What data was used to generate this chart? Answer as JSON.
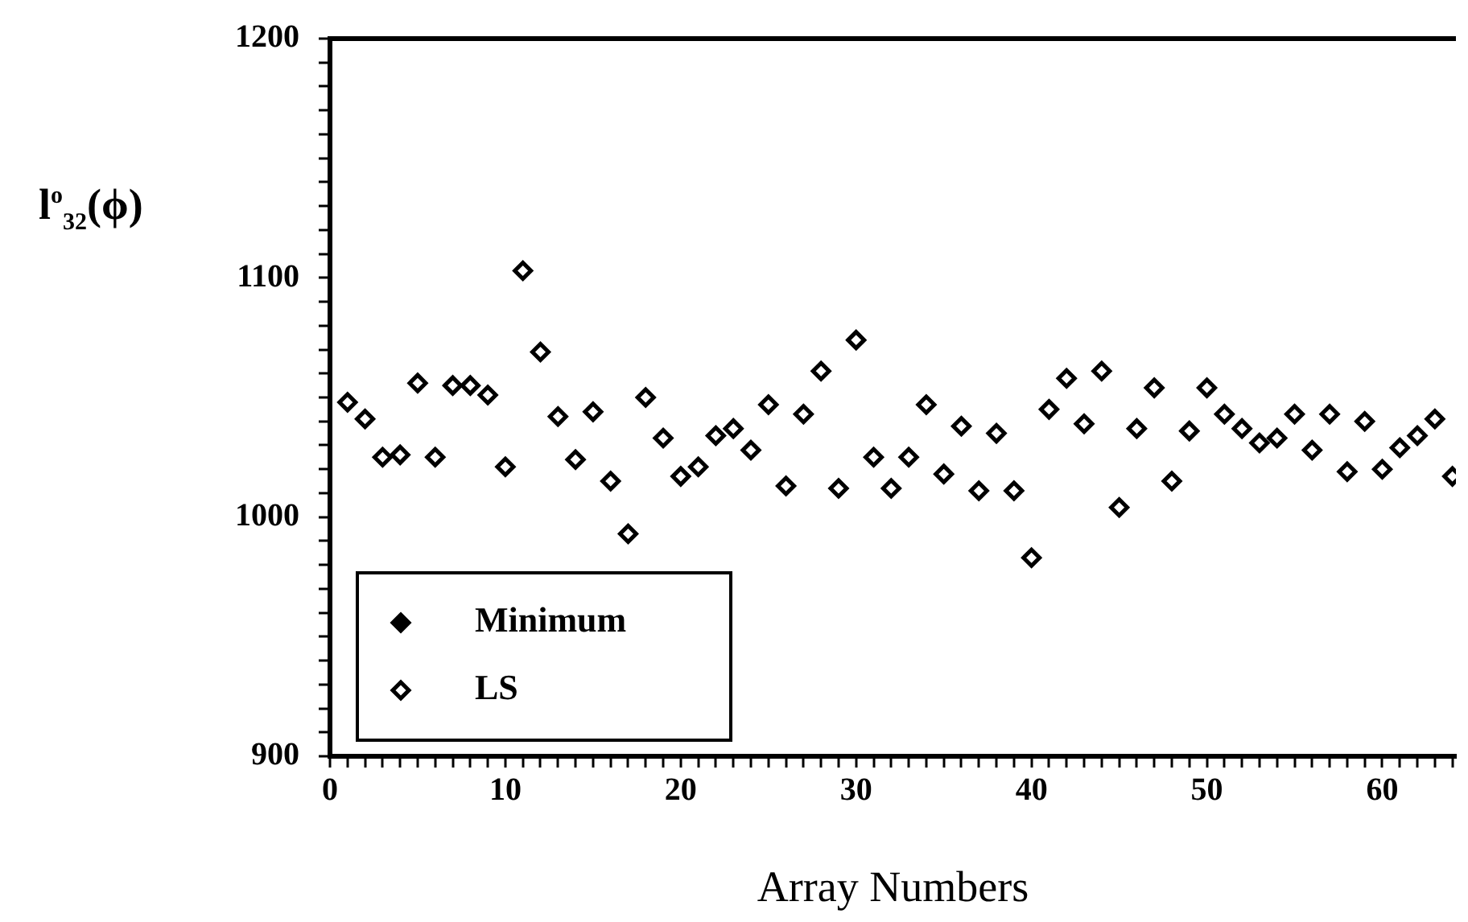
{
  "chart_data": {
    "type": "scatter",
    "xlabel": "Array Numbers",
    "ylabel": "l$^{o}$$_{32}$(ϕ)",
    "x": [
      1,
      2,
      3,
      4,
      5,
      6,
      7,
      8,
      9,
      10,
      11,
      12,
      13,
      14,
      15,
      16,
      17,
      18,
      19,
      20,
      21,
      22,
      23,
      24,
      25,
      26,
      27,
      28,
      29,
      30,
      31,
      32,
      33,
      34,
      35,
      36,
      37,
      38,
      39,
      40,
      41,
      42,
      43,
      44,
      45,
      46,
      47,
      48,
      49,
      50,
      51,
      52,
      53,
      54,
      55,
      56,
      57,
      58,
      59,
      60,
      61,
      62,
      63,
      64
    ],
    "series": [
      {
        "name": "Minimum",
        "color": "#000000",
        "marker": "diamond",
        "values": [
          null,
          null,
          null,
          null,
          null,
          null,
          null,
          null,
          null,
          null,
          null,
          null,
          null,
          null,
          null,
          null,
          null,
          null,
          null,
          null,
          null,
          null,
          null,
          null,
          null,
          null,
          null,
          null,
          null,
          null,
          null,
          null,
          null,
          null,
          null,
          null,
          null,
          null,
          null,
          null,
          null,
          null,
          null,
          null,
          null,
          null,
          null,
          null,
          null,
          null,
          null,
          null,
          null,
          null,
          null,
          null,
          null,
          null,
          null,
          null,
          null,
          null,
          null,
          null
        ]
      },
      {
        "name": "LS",
        "color": "#000000",
        "marker": "diamond",
        "values": [
          1048,
          1041,
          1025,
          1026,
          1056,
          1025,
          1055,
          1055,
          1051,
          1021,
          1103,
          1069,
          1042,
          1024,
          1044,
          1015,
          993,
          1050,
          1033,
          1017,
          1021,
          1034,
          1037,
          1028,
          1047,
          1013,
          1043,
          1061,
          1012,
          1074,
          1025,
          1012,
          1025,
          1047,
          1018,
          1038,
          1011,
          1035,
          1011,
          983,
          1045,
          1058,
          1039,
          1061,
          1004,
          1037,
          1054,
          1015,
          1036,
          1054,
          1043,
          1037,
          1031,
          1033,
          1043,
          1028,
          1043,
          1019,
          1040,
          1020,
          1029,
          1034,
          1041,
          1017
        ]
      }
    ],
    "xlim": [
      0,
      64.2
    ],
    "xticks": [
      0,
      {
        "value": 1,
        "label": null
      },
      {
        "value": 2,
        "label": null
      },
      {
        "value": 3,
        "label": null
      },
      {
        "value": 4,
        "label": null
      },
      {
        "value": 5,
        "label": null
      },
      {
        "value": 6,
        "label": null
      },
      {
        "value": 7,
        "label": null
      },
      {
        "value": 8,
        "label": null
      },
      {
        "value": 9,
        "label": null
      },
      10,
      {
        "value": 11,
        "label": null
      },
      {
        "value": 12,
        "label": null
      },
      {
        "value": 13,
        "label": null
      },
      {
        "value": 14,
        "label": null
      },
      {
        "value": 15,
        "label": null
      },
      {
        "value": 16,
        "label": null
      },
      {
        "value": 17,
        "label": null
      },
      {
        "value": 18,
        "label": null
      },
      {
        "value": 19,
        "label": null
      },
      20,
      {
        "value": 21,
        "label": null
      },
      {
        "value": 22,
        "label": null
      },
      {
        "value": 23,
        "label": null
      },
      {
        "value": 24,
        "label": null
      },
      {
        "value": 25,
        "label": null
      },
      {
        "value": 26,
        "label": null
      },
      {
        "value": 27,
        "label": null
      },
      {
        "value": 28,
        "label": null
      },
      {
        "value": 29,
        "label": null
      },
      30,
      {
        "value": 31,
        "label": null
      },
      {
        "value": 32,
        "label": null
      },
      {
        "value": 33,
        "label": null
      },
      {
        "value": 34,
        "label": null
      },
      {
        "value": 35,
        "label": null
      },
      {
        "value": 36,
        "label": null
      },
      {
        "value": 37,
        "label": null
      },
      {
        "value": 38,
        "label": null
      },
      {
        "value": 39,
        "label": null
      },
      40,
      {
        "value": 41,
        "label": null
      },
      {
        "value": 42,
        "label": null
      },
      {
        "value": 43,
        "label": null
      },
      {
        "value": 44,
        "label": null
      },
      {
        "value": 45,
        "label": null
      },
      {
        "value": 46,
        "label": null
      },
      {
        "value": 47,
        "label": null
      },
      {
        "value": 48,
        "label": null
      },
      {
        "value": 49,
        "label": null
      },
      50,
      {
        "value": 51,
        "label": null
      },
      {
        "value": 52,
        "label": null
      },
      {
        "value": 53,
        "label": null
      },
      {
        "value": 54,
        "label": null
      },
      {
        "value": 55,
        "label": null
      },
      {
        "value": 56,
        "label": null
      },
      {
        "value": 57,
        "label": null
      },
      {
        "value": 58,
        "label": null
      },
      {
        "value": 59,
        "label": null
      },
      60,
      {
        "value": 61,
        "label": null
      },
      {
        "value": 62,
        "label": null
      },
      {
        "value": 63,
        "label": null
      },
      {
        "value": 64,
        "label": null
      }
    ],
    "ylim": [
      900,
      1200
    ],
    "yticks": [
      900,
      {
        "value": 910,
        "label": null
      },
      {
        "value": 920,
        "label": null
      },
      {
        "value": 930,
        "label": null
      },
      {
        "value": 940,
        "label": null
      },
      {
        "value": 950,
        "label": null
      },
      {
        "value": 960,
        "label": null
      },
      {
        "value": 970,
        "label": null
      },
      {
        "value": 980,
        "label": null
      },
      {
        "value": 990,
        "label": null
      },
      1000,
      {
        "value": 1010,
        "label": null
      },
      {
        "value": 1020,
        "label": null
      },
      {
        "value": 1030,
        "label": null
      },
      {
        "value": 1040,
        "label": null
      },
      {
        "value": 1050,
        "label": null
      },
      {
        "value": 1060,
        "label": null
      },
      {
        "value": 1070,
        "label": null
      },
      {
        "value": 1080,
        "label": null
      },
      {
        "value": 1090,
        "label": null
      },
      1100,
      {
        "value": 1110,
        "label": null
      },
      {
        "value": 1120,
        "label": null
      },
      {
        "value": 1130,
        "label": null
      },
      {
        "value": 1140,
        "label": null
      },
      {
        "value": 1150,
        "label": null
      },
      {
        "value": 1160,
        "label": null
      },
      {
        "value": 1170,
        "label": null
      },
      {
        "value": 1180,
        "label": null
      },
      {
        "value": 1190,
        "label": null
      },
      1200
    ],
    "grid": false,
    "legend": "bottom left"
  }
}
